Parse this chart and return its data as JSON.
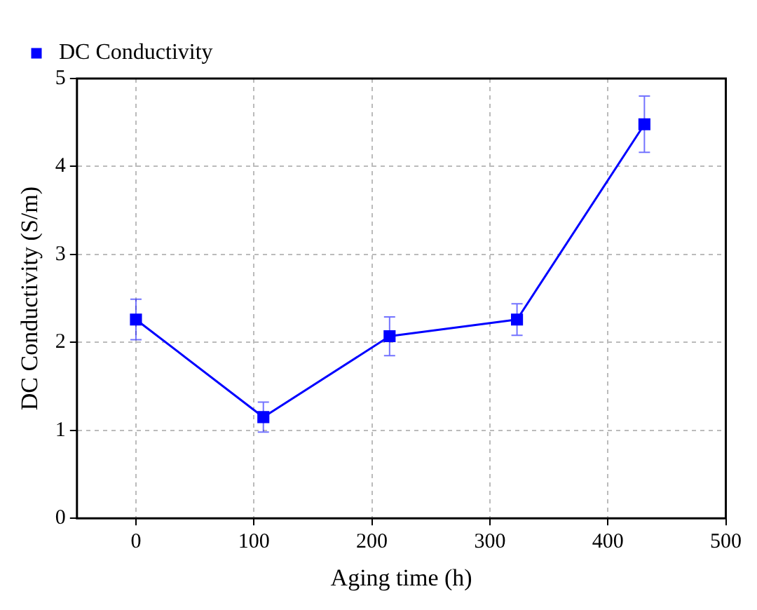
{
  "chart_data": {
    "type": "line",
    "xlabel": "Aging time (h)",
    "ylabel": "DC Conductivity (S/m)",
    "x": [
      0,
      108,
      215,
      323,
      431
    ],
    "series": [
      {
        "name": "DC Conductivity",
        "color": "#0000ff",
        "values": [
          2.26,
          1.15,
          2.07,
          2.26,
          4.48
        ],
        "errors": [
          0.23,
          0.17,
          0.22,
          0.18,
          0.32
        ]
      }
    ],
    "xlim": [
      -50,
      500
    ],
    "xticks": [
      0,
      100,
      200,
      300,
      400,
      500
    ],
    "ylim": [
      0,
      5
    ],
    "yticks": [
      0,
      1,
      2,
      3,
      4,
      5
    ],
    "grid": true,
    "legend": "top left",
    "marker": "square",
    "line_style": "solid"
  }
}
